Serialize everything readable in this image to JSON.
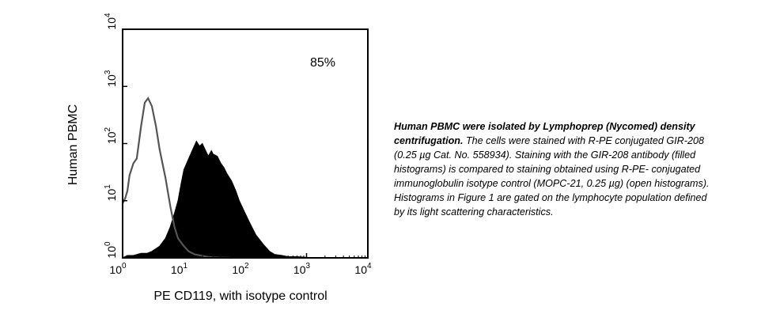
{
  "caption": {
    "bold": "Human PBMC were isolated by Lymphoprep (Nycomed) density centrifugation.",
    "text": " The cells were stained with R-PE conjugated GIR-208 (0.25 µg Cat. No. 558934). Staining with the GIR-208 antibody (filled histograms) is compared to staining obtained using R-PE- conjugated immunoglobulin isotype control (MOPC-21, 0.25 µg) (open histograms). Histograms in Figure 1 are gated on the lymphocyte population defined by its light scattering characteristics."
  },
  "chart_data": {
    "type": "area",
    "title": "",
    "annotation": "85%",
    "xlabel": "PE CD119, with isotype control",
    "ylabel": "Human PBMC",
    "x_scale": "log",
    "xlim": [
      1,
      10000
    ],
    "ylim": [
      1,
      10000
    ],
    "x_ticks": [
      1,
      10,
      100,
      1000,
      10000
    ],
    "y_ticks": [
      1,
      10,
      100,
      1000,
      10000
    ],
    "tick_base": "10",
    "tick_exponents": [
      "0",
      "1",
      "2",
      "3",
      "4"
    ],
    "grid": false,
    "colors": {
      "stained": "#000000",
      "isotype": "#555555"
    },
    "series": [
      {
        "style": "filled",
        "x": [
          1,
          1.2,
          1.5,
          2,
          2.5,
          3,
          4,
          5,
          6,
          7,
          8,
          9,
          10,
          12,
          14,
          16,
          18,
          20,
          22,
          25,
          28,
          30,
          35,
          40,
          45,
          50,
          60,
          70,
          80,
          100,
          120,
          150,
          200,
          250,
          300,
          400,
          500,
          700,
          1000,
          1500,
          2000,
          3000,
          10000
        ],
        "y": [
          1,
          1.1,
          1.1,
          1.2,
          1.2,
          1.3,
          1.6,
          2.2,
          3.5,
          6,
          10,
          20,
          35,
          55,
          80,
          110,
          90,
          100,
          80,
          60,
          75,
          65,
          60,
          45,
          38,
          30,
          22,
          15,
          10,
          6,
          4,
          2.5,
          1.7,
          1.3,
          1.15,
          1.1,
          1.05,
          1.05,
          1.02,
          1.01,
          1.01,
          1.0,
          1.0
        ]
      },
      {
        "style": "open",
        "x": [
          1,
          1.1,
          1.2,
          1.3,
          1.5,
          1.7,
          2.0,
          2.3,
          2.6,
          3.0,
          3.5,
          4,
          5,
          6,
          7,
          8,
          10,
          12,
          15,
          20,
          25,
          30,
          40,
          60
        ],
        "y": [
          9,
          11,
          15,
          28,
          45,
          55,
          200,
          520,
          620,
          450,
          200,
          80,
          25,
          8,
          3.5,
          2.2,
          1.6,
          1.3,
          1.15,
          1.08,
          1.04,
          1.02,
          1.01,
          1.0
        ]
      }
    ]
  }
}
